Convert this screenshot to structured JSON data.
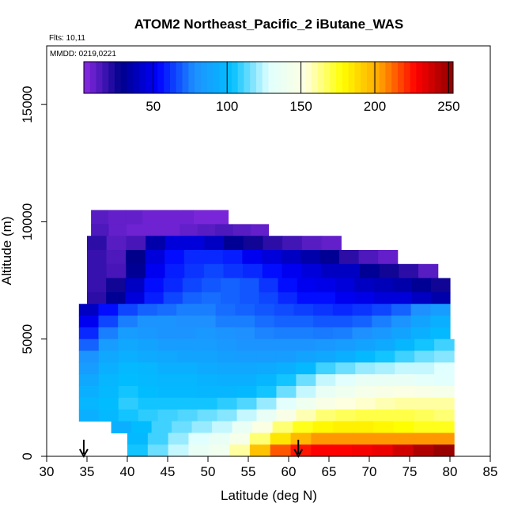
{
  "chart_data": {
    "type": "heatmap",
    "title": "ATOM2 Northeast_Pacific_2 iButane_WAS",
    "annotations": {
      "flights": "Flts: 10,11",
      "dates": "MMDD: 0219,0221"
    },
    "xlabel": "Latitude (deg N)",
    "ylabel": "Altitude (m)",
    "xlim": [
      30,
      85
    ],
    "ylim": [
      0,
      17500
    ],
    "x_ticks": [
      30,
      35,
      40,
      45,
      50,
      55,
      60,
      65,
      70,
      75,
      80,
      85
    ],
    "y_ticks": [
      0,
      5000,
      10000,
      15000
    ],
    "colorbar": {
      "range": [
        3,
        253
      ],
      "ticks": [
        50,
        100,
        150,
        200,
        250
      ],
      "colors": [
        "#8a2be2",
        "#00008b",
        "#0000ff",
        "#1e90ff",
        "#00bfff",
        "#e0ffff",
        "#ffffe0",
        "#ffff00",
        "#ffa500",
        "#ff0000",
        "#8b0000"
      ]
    },
    "profile_markers_lat": [
      34.6,
      61.2
    ],
    "bands": [
      {
        "alt": [
          9900,
          10500
        ],
        "lat": [
          35.5,
          52.5
        ],
        "values": [
          12,
          10,
          10,
          8,
          8,
          8,
          6,
          6
        ]
      },
      {
        "alt": [
          9400,
          9900
        ],
        "lat": [
          35.5,
          57.5
        ],
        "values": [
          14,
          10,
          8,
          8,
          8,
          10,
          12,
          14,
          12,
          10
        ]
      },
      {
        "alt": [
          8800,
          9400
        ],
        "lat": [
          35.0,
          66.5
        ],
        "values": [
          20,
          12,
          15,
          35,
          45,
          45,
          40,
          30,
          25,
          20,
          16,
          12,
          10
        ]
      },
      {
        "alt": [
          8200,
          8800
        ],
        "lat": [
          35.0,
          73.5
        ],
        "values": [
          18,
          14,
          28,
          45,
          55,
          60,
          60,
          58,
          50,
          45,
          40,
          35,
          30,
          20,
          14,
          10
        ]
      },
      {
        "alt": [
          7600,
          8200
        ],
        "lat": [
          35.0,
          78.5
        ],
        "values": [
          18,
          15,
          30,
          50,
          58,
          62,
          65,
          62,
          60,
          55,
          50,
          45,
          40,
          40,
          30,
          25,
          20,
          12
        ]
      },
      {
        "alt": [
          7000,
          7600
        ],
        "lat": [
          35.0,
          80.0
        ],
        "values": [
          18,
          25,
          40,
          55,
          60,
          65,
          68,
          70,
          68,
          62,
          55,
          50,
          48,
          45,
          40,
          38,
          35,
          30,
          25
        ]
      },
      {
        "alt": [
          6500,
          7000
        ],
        "lat": [
          35.0,
          80.0
        ],
        "values": [
          20,
          30,
          45,
          58,
          65,
          70,
          72,
          70,
          68,
          65,
          60,
          55,
          55,
          50,
          48,
          45,
          45,
          40,
          35
        ]
      },
      {
        "alt": [
          6000,
          6500
        ],
        "lat": [
          34.0,
          80.0
        ],
        "values": [
          40,
          55,
          65,
          70,
          72,
          75,
          75,
          72,
          70,
          68,
          66,
          64,
          62,
          60,
          62,
          65,
          70,
          78,
          85
        ]
      },
      {
        "alt": [
          5500,
          6000
        ],
        "lat": [
          34.0,
          80.0
        ],
        "values": [
          50,
          65,
          75,
          80,
          80,
          78,
          78,
          75,
          75,
          72,
          70,
          70,
          68,
          68,
          70,
          75,
          80,
          88,
          95
        ]
      },
      {
        "alt": [
          5000,
          5500
        ],
        "lat": [
          34.0,
          80.0
        ],
        "values": [
          60,
          75,
          85,
          82,
          80,
          80,
          82,
          80,
          78,
          76,
          75,
          75,
          74,
          75,
          78,
          82,
          88,
          95,
          100
        ]
      },
      {
        "alt": [
          4500,
          5000
        ],
        "lat": [
          34.0,
          80.5
        ],
        "values": [
          70,
          85,
          90,
          88,
          85,
          85,
          85,
          82,
          80,
          80,
          80,
          80,
          82,
          85,
          88,
          92,
          98,
          105,
          110
        ]
      },
      {
        "alt": [
          4000,
          4500
        ],
        "lat": [
          34.0,
          80.5
        ],
        "values": [
          80,
          90,
          95,
          92,
          90,
          88,
          88,
          86,
          85,
          85,
          85,
          88,
          90,
          95,
          100,
          105,
          110,
          115,
          118
        ]
      },
      {
        "alt": [
          3500,
          4000
        ],
        "lat": [
          34.0,
          80.5
        ],
        "values": [
          85,
          95,
          100,
          98,
          95,
          95,
          92,
          90,
          90,
          92,
          95,
          100,
          110,
          115,
          120,
          122,
          125,
          125,
          128
        ]
      },
      {
        "alt": [
          3000,
          3500
        ],
        "lat": [
          34.0,
          80.5
        ],
        "values": [
          90,
          98,
          102,
          100,
          98,
          98,
          96,
          95,
          95,
          98,
          105,
          115,
          125,
          130,
          135,
          135,
          135,
          132,
          130
        ]
      },
      {
        "alt": [
          2500,
          3000
        ],
        "lat": [
          34.0,
          80.5
        ],
        "values": [
          95,
          100,
          105,
          102,
          100,
          100,
          98,
          98,
          100,
          105,
          115,
          125,
          135,
          140,
          145,
          148,
          150,
          148,
          145
        ]
      },
      {
        "alt": [
          2000,
          2500
        ],
        "lat": [
          34.0,
          80.5
        ],
        "values": [
          98,
          102,
          108,
          105,
          105,
          105,
          105,
          108,
          112,
          120,
          130,
          140,
          148,
          152,
          155,
          158,
          160,
          160,
          160
        ]
      },
      {
        "alt": [
          1500,
          2000
        ],
        "lat": [
          34.0,
          80.5
        ],
        "values": [
          95,
          100,
          105,
          108,
          110,
          112,
          115,
          118,
          125,
          135,
          148,
          158,
          165,
          168,
          170,
          170,
          170,
          168,
          165
        ]
      },
      {
        "alt": [
          1000,
          1500
        ],
        "lat": [
          38.0,
          80.5
        ],
        "values": [
          95,
          102,
          110,
          115,
          120,
          125,
          135,
          150,
          165,
          175,
          180,
          182,
          182,
          180,
          178,
          175,
          175
        ]
      },
      {
        "alt": [
          500,
          1000
        ],
        "lat": [
          40.0,
          80.5
        ],
        "values": [
          100,
          110,
          120,
          128,
          135,
          145,
          165,
          185,
          198,
          205,
          205,
          205,
          205,
          205,
          205,
          205
        ]
      },
      {
        "alt": [
          0,
          500
        ],
        "lat": [
          40.0,
          80.5
        ],
        "values": [
          105,
          115,
          125,
          135,
          142,
          160,
          195,
          215,
          225,
          228,
          228,
          230,
          232,
          238,
          245,
          250
        ]
      }
    ]
  }
}
